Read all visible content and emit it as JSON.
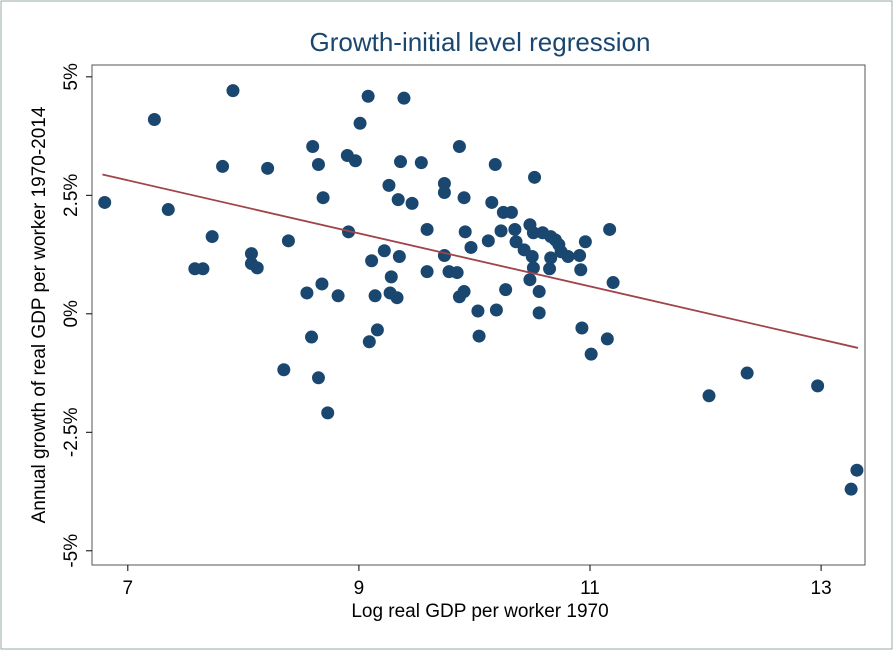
{
  "chart_data": {
    "type": "scatter",
    "title": "Growth-initial level regression",
    "x_label": "Log real GDP per worker 1970",
    "y_label": "Annual growth of real GDP per worker 1970-2014",
    "xlim": [
      6.69,
      13.38
    ],
    "ylim": [
      -5.3,
      5.25
    ],
    "xticks": [
      7,
      9,
      11,
      13
    ],
    "yticks": [
      {
        "value": -5,
        "label": "-5%"
      },
      {
        "value": -2.5,
        "label": "-2.5%"
      },
      {
        "value": 0,
        "label": "0%"
      },
      {
        "value": 2.5,
        "label": "2.5%"
      },
      {
        "value": 5,
        "label": "5%"
      }
    ],
    "grid": false,
    "color": "#1a476f",
    "fit": {
      "color": "#a0444a",
      "x": [
        6.78,
        13.32
      ],
      "y": [
        2.94,
        -0.72
      ]
    },
    "x": [
      6.8,
      7.23,
      7.35,
      7.91,
      7.82,
      7.58,
      7.65,
      7.73,
      8.07,
      8.07,
      8.12,
      8.21,
      8.39,
      8.35,
      8.55,
      8.59,
      8.6,
      8.65,
      8.69,
      8.65,
      8.68,
      8.73,
      8.82,
      8.91,
      8.9,
      8.97,
      9.01,
      9.08,
      9.39,
      9.11,
      9.09,
      9.16,
      9.14,
      9.22,
      9.26,
      9.28,
      9.27,
      9.33,
      9.34,
      9.35,
      9.36,
      9.46,
      9.54,
      9.59,
      9.59,
      9.74,
      9.74,
      9.74,
      9.78,
      9.85,
      9.87,
      9.91,
      9.91,
      9.87,
      9.92,
      9.97,
      10.03,
      10.04,
      10.12,
      10.15,
      10.18,
      10.19,
      10.23,
      10.25,
      10.27,
      10.32,
      10.35,
      10.36,
      10.43,
      10.48,
      10.48,
      10.51,
      10.5,
      10.52,
      10.51,
      10.56,
      10.56,
      10.59,
      10.65,
      10.66,
      10.66,
      10.7,
      10.73,
      10.75,
      10.81,
      10.91,
      10.92,
      10.96,
      10.93,
      11.01,
      11.15,
      11.17,
      11.2,
      12.03,
      12.36,
      12.97,
      13.26,
      13.31
    ],
    "y": [
      2.35,
      4.1,
      2.2,
      4.71,
      3.11,
      0.95,
      0.95,
      1.63,
      1.27,
      1.06,
      0.97,
      3.07,
      1.54,
      -1.18,
      0.44,
      -0.49,
      3.53,
      3.15,
      2.45,
      -1.35,
      0.63,
      -2.09,
      0.38,
      1.73,
      3.34,
      3.23,
      4.02,
      4.59,
      4.55,
      1.12,
      -0.59,
      -0.34,
      0.38,
      1.33,
      2.71,
      0.78,
      0.44,
      0.34,
      2.41,
      1.21,
      3.21,
      2.33,
      3.19,
      1.78,
      0.89,
      2.75,
      2.56,
      1.23,
      0.89,
      0.87,
      3.53,
      2.45,
      0.47,
      0.36,
      1.73,
      1.4,
      0.06,
      -0.47,
      1.54,
      2.35,
      3.15,
      0.08,
      1.75,
      2.14,
      0.51,
      2.14,
      1.78,
      1.52,
      1.35,
      1.88,
      0.72,
      1.71,
      1.21,
      2.88,
      0.97,
      0.47,
      0.02,
      1.71,
      0.95,
      1.18,
      1.63,
      1.56,
      1.46,
      1.31,
      1.21,
      1.23,
      0.93,
      1.52,
      -0.3,
      -0.85,
      -0.53,
      1.78,
      0.66,
      -1.73,
      -1.25,
      -1.52,
      -3.7,
      -3.3
    ]
  }
}
